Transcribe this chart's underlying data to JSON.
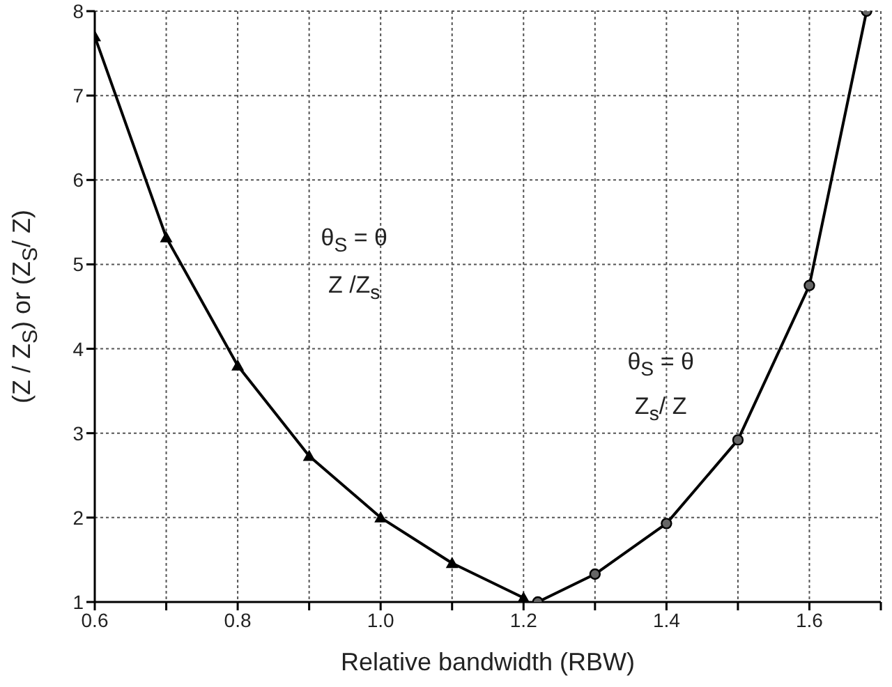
{
  "chart_data": {
    "type": "line",
    "xlabel": "Relative bandwidth (RBW)",
    "ylabel": "(Z / Z$_{S}$) or (Z$_{S}$/ Z)",
    "xlim": [
      0.6,
      1.7
    ],
    "xticks": [
      0.6,
      {
        "value": 0.7,
        "label": null
      },
      0.8,
      {
        "value": 0.9,
        "label": null
      },
      "1.0",
      {
        "value": 1.1,
        "label": null
      },
      1.2,
      {
        "value": 1.3,
        "label": null
      },
      1.4,
      {
        "value": 1.5,
        "label": null
      },
      1.6,
      {
        "value": 1.7,
        "label": null
      }
    ],
    "ylim": [
      1,
      8
    ],
    "yticks": [
      1,
      2,
      3,
      4,
      5,
      6,
      7,
      8
    ],
    "grid": true,
    "line_style": "solid",
    "series": [
      {
        "color": "#000000",
        "marker": "triangle",
        "x": [
          0.6,
          0.7,
          0.8,
          0.9,
          1.0,
          1.1,
          1.2
        ],
        "values": [
          7.7,
          5.32,
          3.8,
          2.73,
          2.0,
          1.46,
          1.05
        ]
      },
      {
        "color": "#000000",
        "marker": "circle",
        "x": [
          1.22,
          1.3,
          1.4,
          1.5,
          1.6,
          1.68
        ],
        "values": [
          1.0,
          1.33,
          1.93,
          2.92,
          4.75,
          8.0
        ]
      }
    ],
    "annotations": [
      "θ$_{S}$ = θ",
      "Z /Z$_{s}$",
      "θ$_{S}$ = θ",
      "Z$_{s}$/ Z"
    ]
  }
}
